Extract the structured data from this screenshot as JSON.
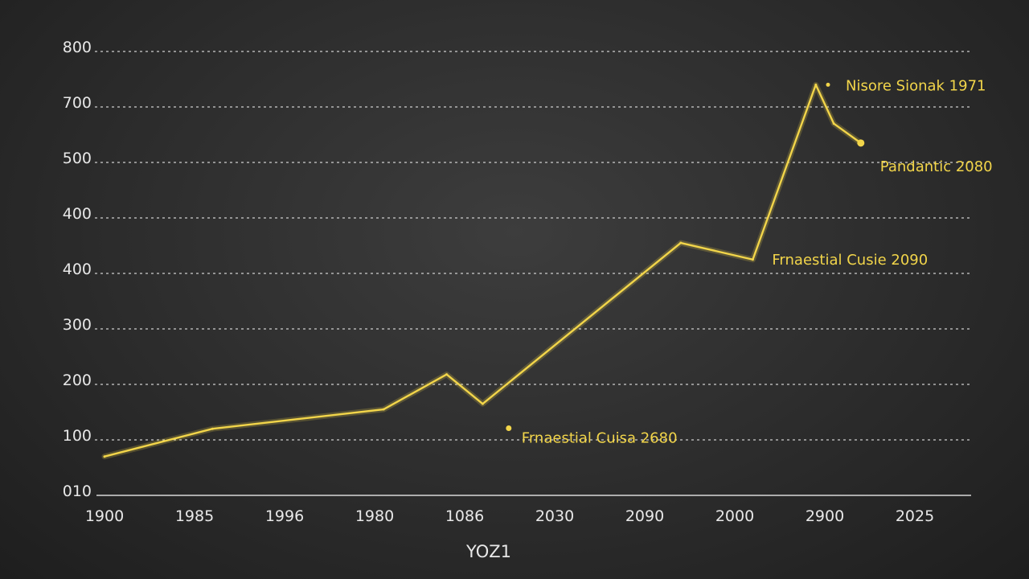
{
  "chart_data": {
    "type": "line",
    "title": "",
    "xlabel": "YOZ1",
    "ylabel": "",
    "grid": true,
    "accent_color": "#f2d54a",
    "y_ticks": [
      "010",
      "100",
      "200",
      "300",
      "400",
      "400",
      "500",
      "700",
      "800"
    ],
    "x_ticks": [
      "1900",
      "1985",
      "1996",
      "1980",
      "1086",
      "2030",
      "2090",
      "2000",
      "2900",
      "2025"
    ],
    "series": [
      {
        "points": [
          {
            "x": 0.0,
            "y": 70
          },
          {
            "x": 1.2,
            "y": 120
          },
          {
            "x": 3.1,
            "y": 155
          },
          {
            "x": 3.8,
            "y": 218
          },
          {
            "x": 4.2,
            "y": 165
          },
          {
            "x": 6.4,
            "y": 455
          },
          {
            "x": 7.2,
            "y": 425
          },
          {
            "x": 7.9,
            "y": 740
          },
          {
            "x": 8.1,
            "y": 670
          },
          {
            "x": 8.4,
            "y": 635
          }
        ]
      }
    ],
    "annotations": [
      {
        "text": "Nisore Sionak 1971",
        "x": 8.0,
        "y": 740
      },
      {
        "text": "Pandantic 2080",
        "x": 8.4,
        "y": 635
      },
      {
        "text": "Frnaestial Cusie 2090",
        "x": 7.2,
        "y": 425
      },
      {
        "text": "Frnaestial Cuisa 2680",
        "x": 4.4,
        "y": 150
      }
    ]
  }
}
